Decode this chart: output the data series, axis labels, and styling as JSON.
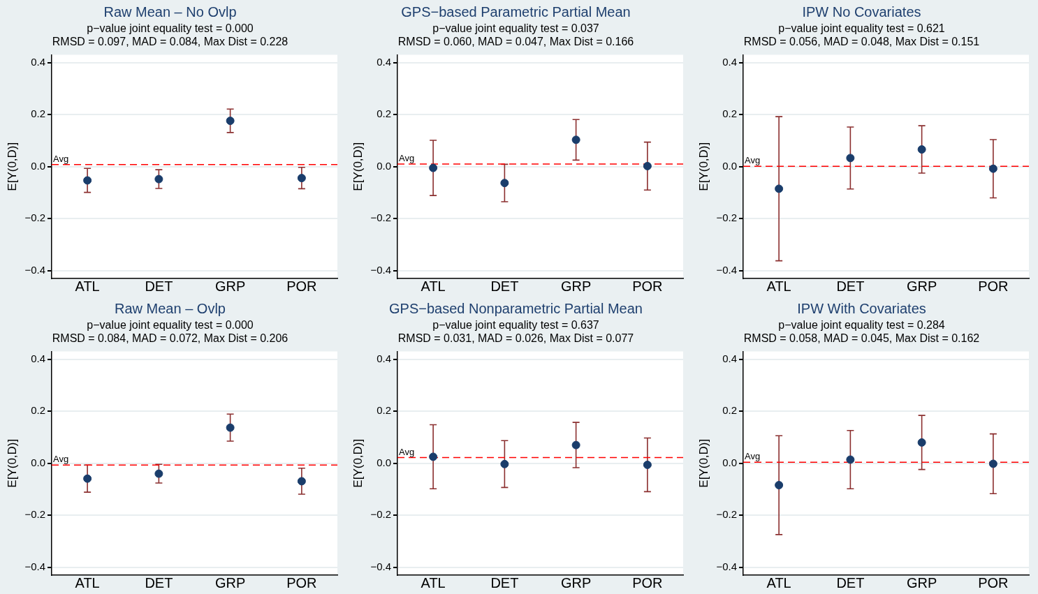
{
  "chart_data": [
    {
      "type": "scatter",
      "title": "Raw Mean – No Ovlp",
      "subtitle": "p−value joint equality test = 0.000\nRMSD = 0.097, MAD = 0.084, Max Dist = 0.228",
      "ylabel": "E[Y(0,D)]",
      "categories": [
        "ATL",
        "DET",
        "GRP",
        "POR"
      ],
      "series": [
        {
          "color": "#1a3d6b",
          "values": [
            -0.053,
            -0.048,
            0.176,
            -0.044
          ],
          "errors": [
            0.046,
            0.036,
            0.045,
            0.041
          ]
        }
      ],
      "ylim": [
        -0.43,
        0.43
      ],
      "yticks": [
        {
          "value": -0.4,
          "label": "−0.4"
        },
        {
          "value": -0.2,
          "label": "−0.2"
        },
        {
          "value": 0,
          "label": "0.0"
        },
        {
          "value": 0.2,
          "label": "0.2"
        },
        {
          "value": 0.4,
          "label": "0.4"
        }
      ],
      "ref_lines": [
        {
          "axis": "y",
          "value": 0.008,
          "label": "Avg",
          "color": "#ff0000",
          "line_style": "dashed"
        }
      ],
      "grid": "y",
      "marker": "circle",
      "legend": false
    },
    {
      "type": "scatter",
      "title": "GPS−based Parametric Partial Mean",
      "subtitle": "p−value joint equality test = 0.037\nRMSD = 0.060, MAD = 0.047, Max Dist = 0.166",
      "ylabel": "E[Y(0,D)]",
      "categories": [
        "ATL",
        "DET",
        "GRP",
        "POR"
      ],
      "series": [
        {
          "color": "#1a3d6b",
          "values": [
            -0.005,
            -0.063,
            0.103,
            0.002
          ],
          "errors": [
            0.106,
            0.072,
            0.078,
            0.092
          ]
        }
      ],
      "ylim": [
        -0.43,
        0.43
      ],
      "yticks": [
        {
          "value": -0.4,
          "label": "−0.4"
        },
        {
          "value": -0.2,
          "label": "−0.2"
        },
        {
          "value": 0,
          "label": "0.0"
        },
        {
          "value": 0.2,
          "label": "0.2"
        },
        {
          "value": 0.4,
          "label": "0.4"
        }
      ],
      "ref_lines": [
        {
          "axis": "y",
          "value": 0.01,
          "label": "Avg",
          "color": "#ff0000",
          "line_style": "dashed"
        }
      ],
      "grid": "y",
      "marker": "circle",
      "legend": false
    },
    {
      "type": "scatter",
      "title": "IPW No Covariates",
      "subtitle": "p−value joint equality test = 0.621\nRMSD = 0.056, MAD = 0.048, Max Dist = 0.151",
      "ylabel": "E[Y(0,D)]",
      "categories": [
        "ATL",
        "DET",
        "GRP",
        "POR"
      ],
      "series": [
        {
          "color": "#1a3d6b",
          "values": [
            -0.085,
            0.033,
            0.066,
            -0.008
          ],
          "errors": [
            0.277,
            0.119,
            0.091,
            0.112
          ]
        }
      ],
      "ylim": [
        -0.43,
        0.43
      ],
      "yticks": [
        {
          "value": -0.4,
          "label": "−0.4"
        },
        {
          "value": -0.2,
          "label": "−0.2"
        },
        {
          "value": 0,
          "label": "0.0"
        },
        {
          "value": 0.2,
          "label": "0.2"
        },
        {
          "value": 0.4,
          "label": "0.4"
        }
      ],
      "ref_lines": [
        {
          "axis": "y",
          "value": 0.001,
          "label": "Avg",
          "color": "#ff0000",
          "line_style": "dashed"
        }
      ],
      "grid": "y",
      "marker": "circle",
      "legend": false
    },
    {
      "type": "scatter",
      "title": "Raw Mean – Ovlp",
      "subtitle": "p−value joint equality test = 0.000\nRMSD = 0.084, MAD = 0.072, Max Dist = 0.206",
      "ylabel": "E[Y(0,D)]",
      "categories": [
        "ATL",
        "DET",
        "GRP",
        "POR"
      ],
      "series": [
        {
          "color": "#1a3d6b",
          "values": [
            -0.059,
            -0.04,
            0.137,
            -0.069
          ],
          "errors": [
            0.052,
            0.036,
            0.052,
            0.05
          ]
        }
      ],
      "ylim": [
        -0.43,
        0.43
      ],
      "yticks": [
        {
          "value": -0.4,
          "label": "−0.4"
        },
        {
          "value": -0.2,
          "label": "−0.2"
        },
        {
          "value": 0,
          "label": "0.0"
        },
        {
          "value": 0.2,
          "label": "0.2"
        },
        {
          "value": 0.4,
          "label": "0.4"
        }
      ],
      "ref_lines": [
        {
          "axis": "y",
          "value": -0.007,
          "label": "Avg",
          "color": "#ff0000",
          "line_style": "dashed"
        }
      ],
      "grid": "y",
      "marker": "circle",
      "legend": false
    },
    {
      "type": "scatter",
      "title": "GPS−based Nonparametric Partial Mean",
      "subtitle": "p−value joint equality test = 0.637\nRMSD = 0.031, MAD = 0.026, Max Dist = 0.077",
      "ylabel": "E[Y(0,D)]",
      "categories": [
        "ATL",
        "DET",
        "GRP",
        "POR"
      ],
      "series": [
        {
          "color": "#1a3d6b",
          "values": [
            0.025,
            -0.003,
            0.07,
            -0.006
          ],
          "errors": [
            0.123,
            0.09,
            0.087,
            0.103
          ]
        }
      ],
      "ylim": [
        -0.43,
        0.43
      ],
      "yticks": [
        {
          "value": -0.4,
          "label": "−0.4"
        },
        {
          "value": -0.2,
          "label": "−0.2"
        },
        {
          "value": 0,
          "label": "0.0"
        },
        {
          "value": 0.2,
          "label": "0.2"
        },
        {
          "value": 0.4,
          "label": "0.4"
        }
      ],
      "ref_lines": [
        {
          "axis": "y",
          "value": 0.022,
          "label": "Avg",
          "color": "#ff0000",
          "line_style": "dashed"
        }
      ],
      "grid": "y",
      "marker": "circle",
      "legend": false
    },
    {
      "type": "scatter",
      "title": "IPW With Covariates",
      "subtitle": "p−value joint equality test = 0.284\nRMSD = 0.058, MAD = 0.045, Max Dist = 0.162",
      "ylabel": "E[Y(0,D)]",
      "categories": [
        "ATL",
        "DET",
        "GRP",
        "POR"
      ],
      "series": [
        {
          "color": "#1a3d6b",
          "values": [
            -0.084,
            0.014,
            0.08,
            -0.002
          ],
          "errors": [
            0.19,
            0.112,
            0.104,
            0.115
          ]
        }
      ],
      "ylim": [
        -0.43,
        0.43
      ],
      "yticks": [
        {
          "value": -0.4,
          "label": "−0.4"
        },
        {
          "value": -0.2,
          "label": "−0.2"
        },
        {
          "value": 0,
          "label": "0.0"
        },
        {
          "value": 0.2,
          "label": "0.2"
        },
        {
          "value": 0.4,
          "label": "0.4"
        }
      ],
      "ref_lines": [
        {
          "axis": "y",
          "value": 0.004,
          "label": "Avg",
          "color": "#ff0000",
          "line_style": "dashed"
        }
      ],
      "grid": "y",
      "marker": "circle",
      "legend": false
    }
  ]
}
